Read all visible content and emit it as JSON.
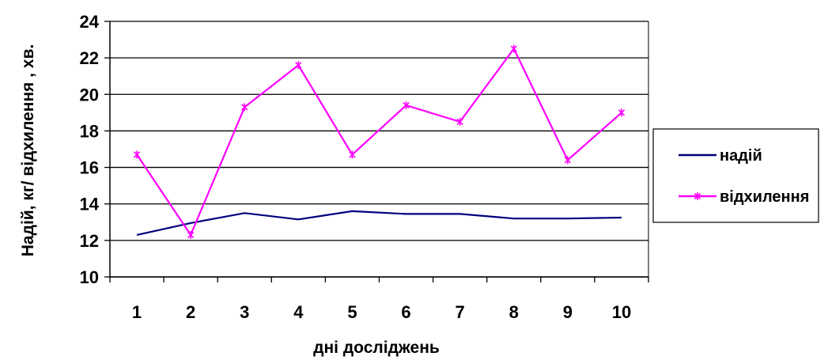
{
  "chart_data": {
    "type": "line",
    "title": "",
    "xlabel": "дні досліджень",
    "ylabel": "Надій, кг/ відхилення , хв.",
    "categories": [
      "1",
      "2",
      "3",
      "4",
      "5",
      "6",
      "7",
      "8",
      "9",
      "10"
    ],
    "ylim": [
      10,
      24
    ],
    "yticks": [
      "10",
      "12",
      "14",
      "16",
      "18",
      "20",
      "22",
      "24"
    ],
    "grid": true,
    "legend_position": "right",
    "series": [
      {
        "name": "надій",
        "color": "#000080",
        "marker": "none",
        "values": [
          12.3,
          12.95,
          13.5,
          13.15,
          13.6,
          13.45,
          13.45,
          13.2,
          13.2,
          13.25
        ]
      },
      {
        "name": "відхилення",
        "color": "#ff00ff",
        "marker": "asterisk",
        "values": [
          16.7,
          12.3,
          19.3,
          21.6,
          16.7,
          19.4,
          18.5,
          22.5,
          16.4,
          19.0
        ]
      }
    ]
  }
}
